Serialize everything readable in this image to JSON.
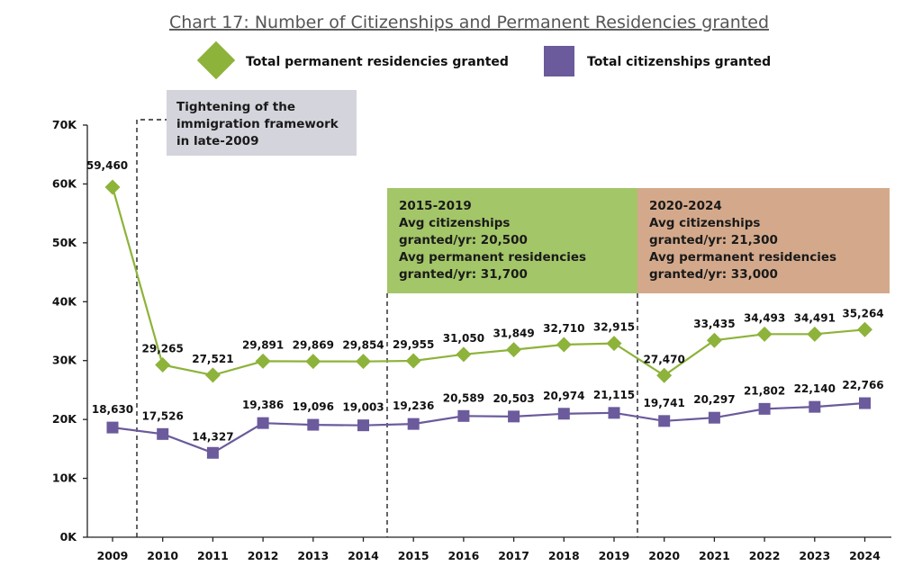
{
  "chart_data": {
    "type": "line",
    "title": "Chart 17: Number of Citizenships and Permanent Residencies granted",
    "x": [
      "2009",
      "2010",
      "2011",
      "2012",
      "2013",
      "2014",
      "2015",
      "2016",
      "2017",
      "2018",
      "2019",
      "2020",
      "2021",
      "2022",
      "2023",
      "2024"
    ],
    "ylim": [
      0,
      70000
    ],
    "yticks": [
      {
        "value": 0,
        "label": "0K"
      },
      {
        "value": 10000,
        "label": "10K"
      },
      {
        "value": 20000,
        "label": "20K"
      },
      {
        "value": 30000,
        "label": "30K"
      },
      {
        "value": 40000,
        "label": "40K"
      },
      {
        "value": 50000,
        "label": "50K"
      },
      {
        "value": 60000,
        "label": "60K"
      },
      {
        "value": 70000,
        "label": "70K"
      }
    ],
    "grid": false,
    "legend_position": "top-center",
    "series": [
      {
        "name": "Total permanent residencies granted",
        "color": "#8db33a",
        "marker": "diamond",
        "values": [
          59460,
          29265,
          27521,
          29891,
          29869,
          29854,
          29955,
          31050,
          31849,
          32710,
          32915,
          27470,
          33435,
          34493,
          34491,
          35264
        ],
        "labels": [
          "59,460",
          "29,265",
          "27,521",
          "29,891",
          "29,869",
          "29,854",
          "29,955",
          "31,050",
          "31,849",
          "32,710",
          "32,915",
          "27,470",
          "33,435",
          "34,493",
          "34,491",
          "35,264"
        ]
      },
      {
        "name": "Total citizenships granted",
        "color": "#6b5a9c",
        "marker": "square",
        "values": [
          18630,
          17526,
          14327,
          19386,
          19096,
          19003,
          19236,
          20589,
          20503,
          20974,
          21115,
          19741,
          20297,
          21802,
          22140,
          22766
        ],
        "labels": [
          "18,630",
          "17,526",
          "14,327",
          "19,386",
          "19,096",
          "19,003",
          "19,236",
          "20,589",
          "20,503",
          "20,974",
          "21,115",
          "19,741",
          "20,297",
          "21,802",
          "22,140",
          "22,766"
        ]
      }
    ],
    "annotations": [
      {
        "id": "tightening",
        "lines": [
          "Tightening of the",
          "immigration framework",
          "in late-2009"
        ],
        "color": "#d4d4dc"
      },
      {
        "id": "period-2015-2019",
        "lines": [
          "2015-2019",
          "Avg citizenships",
          "granted/yr: 20,500",
          "Avg permanent residencies",
          "granted/yr: 31,700"
        ],
        "color": "#a3c668"
      },
      {
        "id": "period-2020-2024",
        "lines": [
          "2020-2024",
          "Avg citizenships",
          "granted/yr: 21,300",
          "Avg permanent residencies",
          "granted/yr: 33,000"
        ],
        "color": "#d4a98b"
      }
    ]
  }
}
